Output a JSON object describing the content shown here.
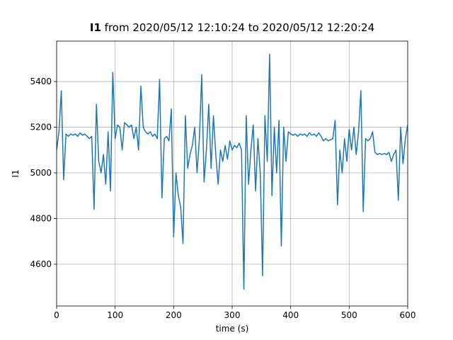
{
  "chart_data": {
    "type": "line",
    "title_bold": "I1",
    "title": "from 2020/05/12 12:10:24 to 2020/05/12 12:20:24",
    "x_label": "time (s)",
    "y_label": "I1",
    "xlim": [
      0,
      600
    ],
    "ylim": [
      4417,
      5577
    ],
    "xticks": [
      0,
      100,
      200,
      300,
      400,
      500,
      600
    ],
    "yticks": [
      4600,
      4800,
      5000,
      5200,
      5400
    ],
    "grid": true,
    "x": [
      0,
      4,
      8,
      12,
      16,
      20,
      24,
      28,
      32,
      36,
      40,
      44,
      48,
      52,
      56,
      60,
      64,
      68,
      72,
      76,
      80,
      84,
      88,
      92,
      96,
      100,
      104,
      108,
      112,
      116,
      120,
      124,
      128,
      132,
      136,
      140,
      144,
      148,
      152,
      156,
      160,
      164,
      168,
      172,
      176,
      180,
      184,
      188,
      192,
      196,
      200,
      204,
      208,
      212,
      216,
      220,
      224,
      228,
      232,
      236,
      240,
      244,
      248,
      252,
      256,
      260,
      264,
      268,
      272,
      276,
      280,
      284,
      288,
      292,
      296,
      300,
      304,
      308,
      312,
      316,
      320,
      324,
      328,
      332,
      336,
      340,
      344,
      348,
      352,
      356,
      360,
      364,
      368,
      372,
      376,
      380,
      384,
      388,
      392,
      396,
      400,
      404,
      408,
      412,
      416,
      420,
      424,
      428,
      432,
      436,
      440,
      444,
      448,
      452,
      456,
      460,
      464,
      468,
      472,
      476,
      480,
      484,
      488,
      492,
      496,
      500,
      504,
      508,
      512,
      516,
      520,
      524,
      528,
      532,
      536,
      540,
      544,
      548,
      552,
      556,
      560,
      564,
      568,
      572,
      576,
      580,
      584,
      588,
      592,
      596,
      600
    ],
    "series": [
      {
        "color": "#1f77b4",
        "values": [
          5100,
          5180,
          5360,
          4970,
          5170,
          5160,
          5170,
          5165,
          5170,
          5160,
          5175,
          5165,
          5170,
          5160,
          5150,
          5160,
          4840,
          5300,
          5050,
          5000,
          5080,
          4950,
          5180,
          4920,
          5440,
          5150,
          5210,
          5200,
          5100,
          5220,
          5210,
          5200,
          5210,
          5150,
          5200,
          5100,
          5380,
          5200,
          5180,
          5170,
          5180,
          5160,
          5170,
          5150,
          5410,
          4890,
          5150,
          5160,
          5140,
          5280,
          4720,
          5000,
          4900,
          4850,
          4690,
          5250,
          5020,
          5080,
          5120,
          5200,
          5000,
          5150,
          5430,
          4960,
          5100,
          5300,
          5020,
          5250,
          5080,
          4950,
          5100,
          5050,
          5120,
          5060,
          5140,
          5100,
          5120,
          5110,
          5130,
          5100,
          4490,
          5250,
          4950,
          5100,
          5210,
          4920,
          5150,
          5000,
          4550,
          5250,
          5050,
          5520,
          4900,
          5200,
          5000,
          5230,
          4680,
          5200,
          5050,
          5180,
          5170,
          5165,
          5170,
          5160,
          5170,
          5165,
          5170,
          5160,
          5175,
          5165,
          5170,
          5160,
          5175,
          5160,
          5140,
          5150,
          5140,
          5145,
          5150,
          5230,
          4860,
          5100,
          5000,
          5150,
          5050,
          5190,
          5100,
          5200,
          5080,
          5180,
          5360,
          4830,
          5150,
          5140,
          5150,
          5180,
          5090,
          5080,
          5085,
          5080,
          5085,
          5080,
          5090,
          5050,
          5080,
          5100,
          4880,
          5200,
          5040,
          5150,
          5210
        ]
      }
    ]
  }
}
